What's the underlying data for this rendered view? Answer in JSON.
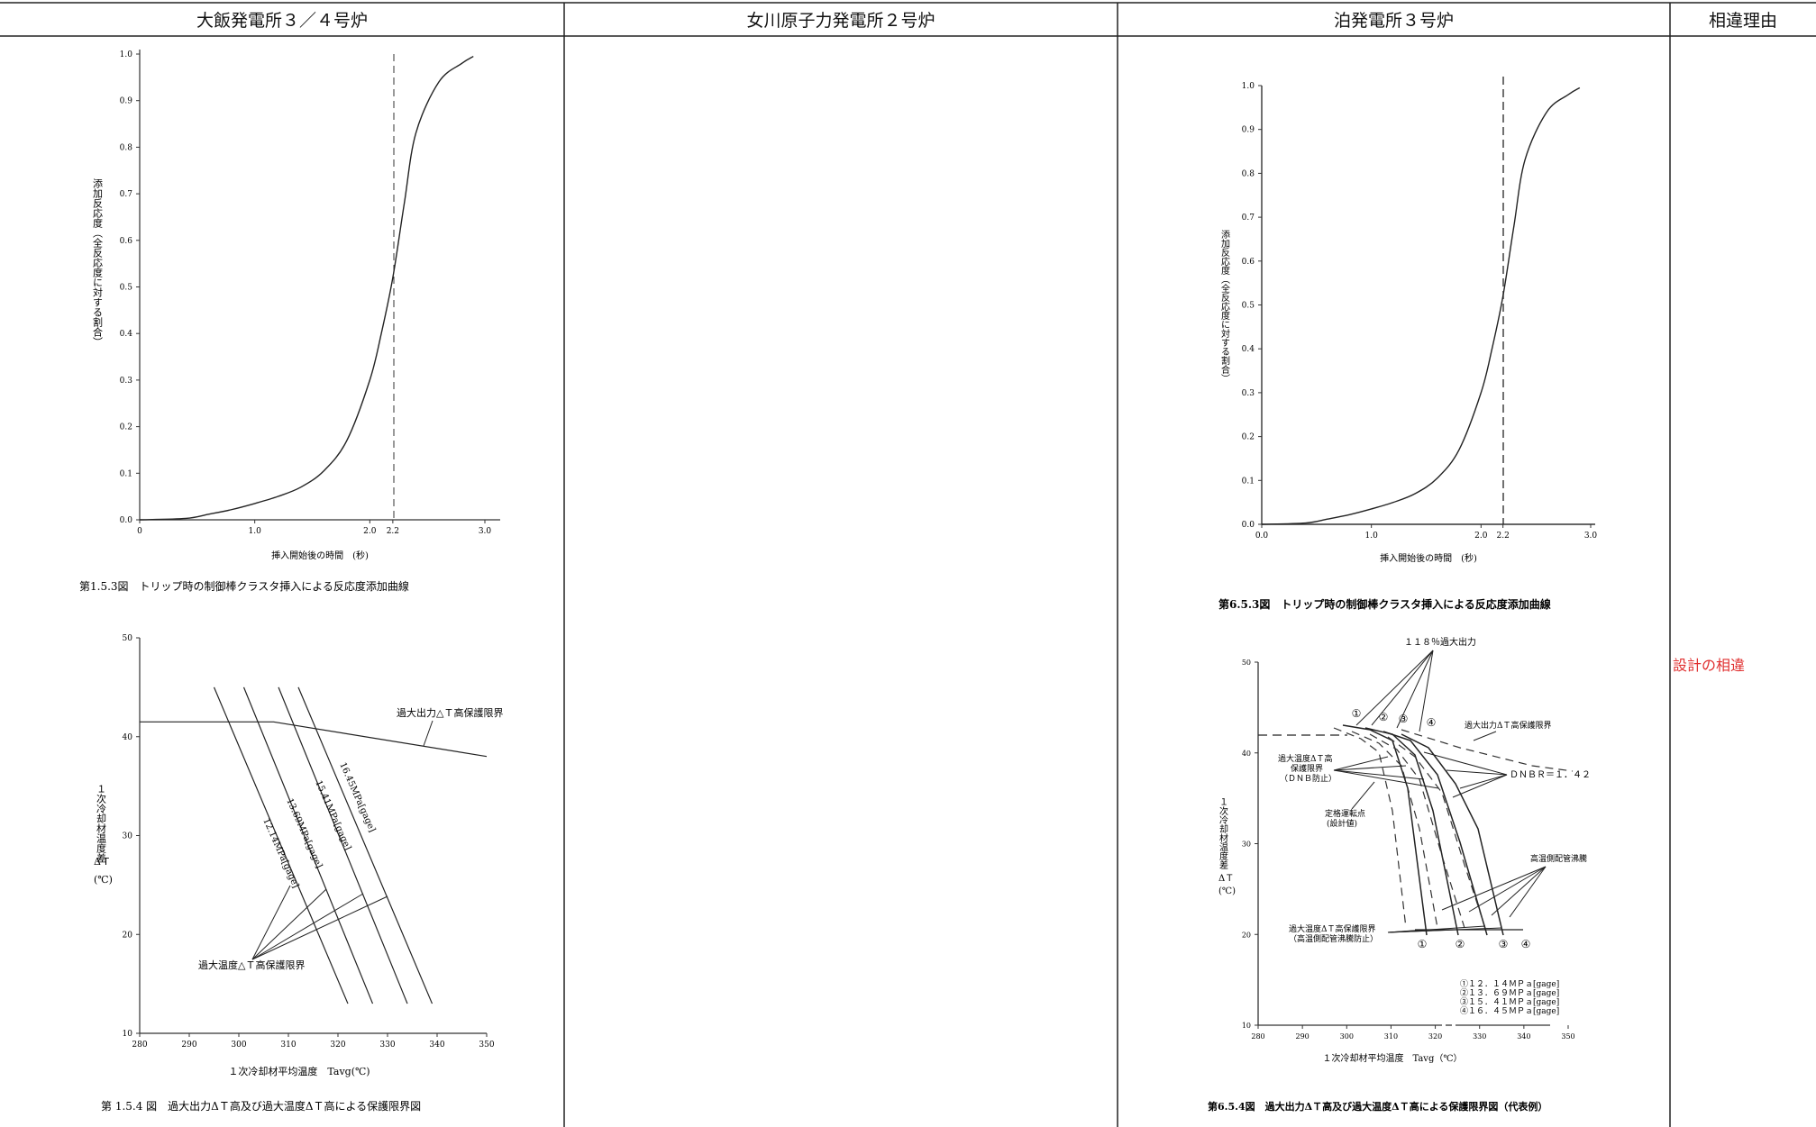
{
  "headers": {
    "col1": "大飯発電所３／４号炉",
    "col2": "女川原子力発電所２号炉",
    "col3": "泊発電所３号炉",
    "col4": "相違理由"
  },
  "left_fig1": {
    "caption": "第1.5.3図　トリップ時の制御棒クラスタ挿入による反応度添加曲線",
    "ylabel": "添加反応度（全反応度に対する割合）",
    "xlabel": "挿入開始後の時間　(秒)"
  },
  "left_fig2": {
    "caption": "第 1.5.4 図　過大出力ΔＴ高及び過大温度ΔＴ高による保護限界図",
    "ylabel_main": "１次冷却材温度差",
    "ylabel_sym": "ΔＴ",
    "ylabel_unit": "(℃)",
    "xlabel": "１次冷却材平均温度　Tavg(℃)",
    "op_limit": "過大出力△Ｔ高保護限界",
    "ot_limit": "過大温度△Ｔ高保護限界"
  },
  "right_fig1": {
    "caption": "第6.5.3図　トリップ時の制御棒クラスタ挿入による反応度添加曲線",
    "ylabel": "添加反応度（全反応度に対する割合）",
    "xlabel": "挿入開始後の時間　(秒)"
  },
  "right_fig2": {
    "caption": "第6.5.4図　過大出力ΔＴ高及び過大温度ΔＴ高による保護限界図（代表例）",
    "top_label": "１１８％過大出力",
    "op_limit": "過大出力ΔＴ高保護限界",
    "ot_limit_1": "過大温度ΔＴ高",
    "ot_limit_2": "保護限界",
    "ot_limit_3": "（ＤＮＢ防止）",
    "dnbr": "ＤＮＢＲ＝１．４２",
    "rated_1": "定格運転点",
    "rated_2": "(設計値)",
    "hpipe": "高温側配管沸騰",
    "bottom_1": "過大温度ΔＴ高保護限界",
    "bottom_2": "（高温側配管沸騰防止）",
    "ylabel_main": "１次冷却材温度差",
    "ylabel_sym": "ΔＴ",
    "ylabel_unit": "(℃)",
    "xlabel": "１次冷却材平均温度　Tavg（℃）",
    "legend": [
      "①１２．１４ＭＰａ[gage]",
      "②１３．６９ＭＰａ[gage]",
      "③１５．４１ＭＰａ[gage]",
      "④１６．４５ＭＰａ[gage]"
    ]
  },
  "diff_reason": "設計の相違",
  "chart_data": [
    {
      "type": "line",
      "title": "",
      "xlabel": "挿入開始後の時間　(秒)",
      "ylabel": "添加反応度（全反応度に対する割合）",
      "xlim": [
        0,
        3.0
      ],
      "ylim": [
        0,
        1.0
      ],
      "x_ticks": [
        "0",
        "1.0",
        "2.0",
        "2.2",
        "3.0"
      ],
      "y_ticks": [
        "0.0",
        "0.1",
        "0.2",
        "0.3",
        "0.4",
        "0.5",
        "0.6",
        "0.7",
        "0.8",
        "0.9",
        "1.0"
      ],
      "reference_line_x": 2.2,
      "x": [
        0,
        0.4,
        0.6,
        0.8,
        1.0,
        1.2,
        1.4,
        1.6,
        1.8,
        2.0,
        2.1,
        2.2,
        2.3,
        2.4,
        2.6,
        2.8,
        2.9
      ],
      "y": [
        0,
        0.003,
        0.012,
        0.022,
        0.035,
        0.05,
        0.07,
        0.105,
        0.17,
        0.3,
        0.4,
        0.52,
        0.68,
        0.83,
        0.94,
        0.98,
        0.995
      ]
    },
    {
      "type": "line",
      "title": "",
      "xlabel": "１次冷却材平均温度　Tavg(℃)",
      "ylabel": "１次冷却材温度差 ΔＴ (℃)",
      "xlim": [
        280,
        350
      ],
      "ylim": [
        10,
        50
      ],
      "x_ticks": [
        "280",
        "290",
        "300",
        "310",
        "320",
        "330",
        "340",
        "350"
      ],
      "y_ticks": [
        "10",
        "20",
        "30",
        "40",
        "50"
      ],
      "series": [
        {
          "name": "過大出力△Ｔ高保護限界",
          "x": [
            280,
            307,
            350
          ],
          "y": [
            41.5,
            41.5,
            38.0
          ]
        },
        {
          "name": "12.14MPa[gage]",
          "x": [
            295,
            322
          ],
          "y": [
            45.0,
            13.0
          ]
        },
        {
          "name": "13.69MPa[gage]",
          "x": [
            301,
            327
          ],
          "y": [
            45.0,
            13.0
          ]
        },
        {
          "name": "15.41MPa[gage]",
          "x": [
            308,
            334
          ],
          "y": [
            45.0,
            13.0
          ]
        },
        {
          "name": "16.45MPa[gage]",
          "x": [
            312,
            339
          ],
          "y": [
            45.0,
            13.0
          ]
        }
      ]
    },
    {
      "type": "line",
      "title": "",
      "xlabel": "挿入開始後の時間　(秒)",
      "ylabel": "添加反応度（全反応度に対する割合）",
      "xlim": [
        0,
        3.0
      ],
      "ylim": [
        0,
        1.0
      ],
      "x_ticks": [
        "0.0",
        "1.0",
        "2.0",
        "2.2",
        "3.0"
      ],
      "y_ticks": [
        "0.0",
        "0.1",
        "0.2",
        "0.3",
        "0.4",
        "0.5",
        "0.6",
        "0.7",
        "0.8",
        "0.9",
        "1.0"
      ],
      "reference_line_x": 2.2,
      "x": [
        0,
        0.4,
        0.6,
        0.8,
        1.0,
        1.2,
        1.4,
        1.6,
        1.8,
        2.0,
        2.1,
        2.2,
        2.3,
        2.4,
        2.6,
        2.8,
        2.9
      ],
      "y": [
        0,
        0.003,
        0.012,
        0.022,
        0.035,
        0.05,
        0.07,
        0.105,
        0.17,
        0.3,
        0.4,
        0.52,
        0.68,
        0.83,
        0.94,
        0.98,
        0.995
      ]
    },
    {
      "type": "line",
      "title": "",
      "xlabel": "１次冷却材平均温度　Tavg（℃）",
      "ylabel": "１次冷却材温度差 ΔＴ (℃)",
      "xlim": [
        280,
        350
      ],
      "ylim": [
        10,
        50
      ],
      "x_ticks": [
        "280",
        "290",
        "300",
        "310",
        "320",
        "330",
        "340",
        "350"
      ],
      "y_ticks": [
        "10",
        "20",
        "30",
        "40",
        "50"
      ],
      "series": [
        {
          "name": "過大出力ΔＴ高保護限界",
          "x": [
            280,
            307,
            332
          ],
          "y": [
            42.2,
            42.2,
            40.2
          ]
        },
        {
          "name": "①",
          "x": [
            303,
            313
          ],
          "y": [
            43.0,
            20.0
          ]
        },
        {
          "name": "②",
          "x": [
            308,
            320
          ],
          "y": [
            43.0,
            20.0
          ]
        },
        {
          "name": "③",
          "x": [
            312,
            329
          ],
          "y": [
            42.5,
            20.0
          ]
        },
        {
          "name": "④",
          "x": [
            314,
            334
          ],
          "y": [
            42.0,
            20.0
          ]
        }
      ]
    }
  ]
}
